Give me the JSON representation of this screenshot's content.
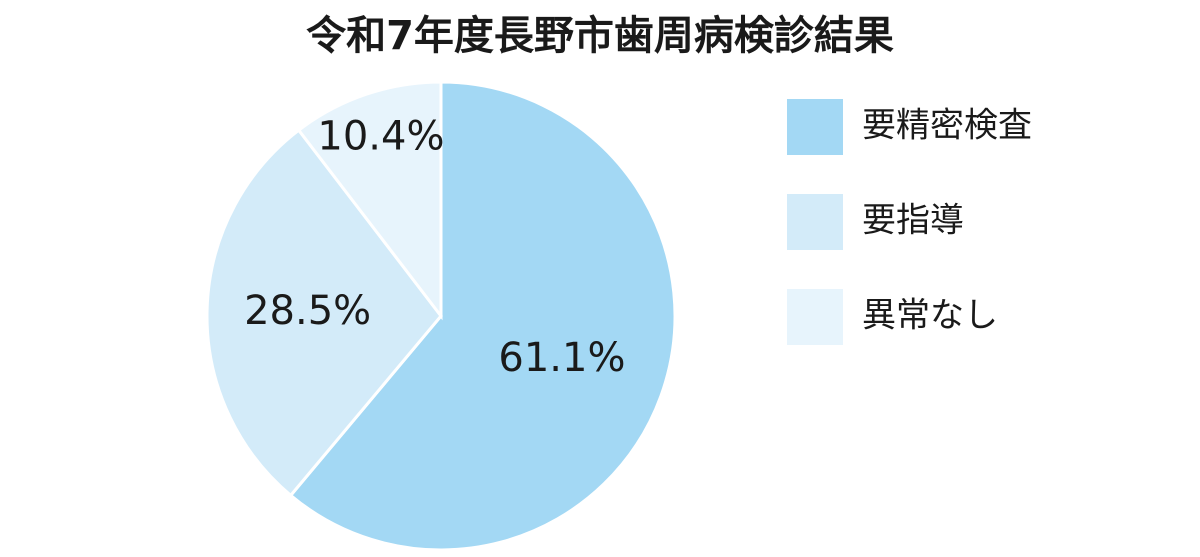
{
  "chart_data": {
    "type": "pie",
    "title": "令和7年度長野市歯周病検診結果",
    "categories": [
      "要精密検査",
      "要指導",
      "異常なし"
    ],
    "values": [
      61.1,
      28.5,
      10.4
    ],
    "value_labels": [
      "61.1%",
      "28.5%",
      "10.4%"
    ],
    "colors": [
      "#a3d8f4",
      "#d3ebf9",
      "#e7f4fc"
    ],
    "legend": "right"
  }
}
